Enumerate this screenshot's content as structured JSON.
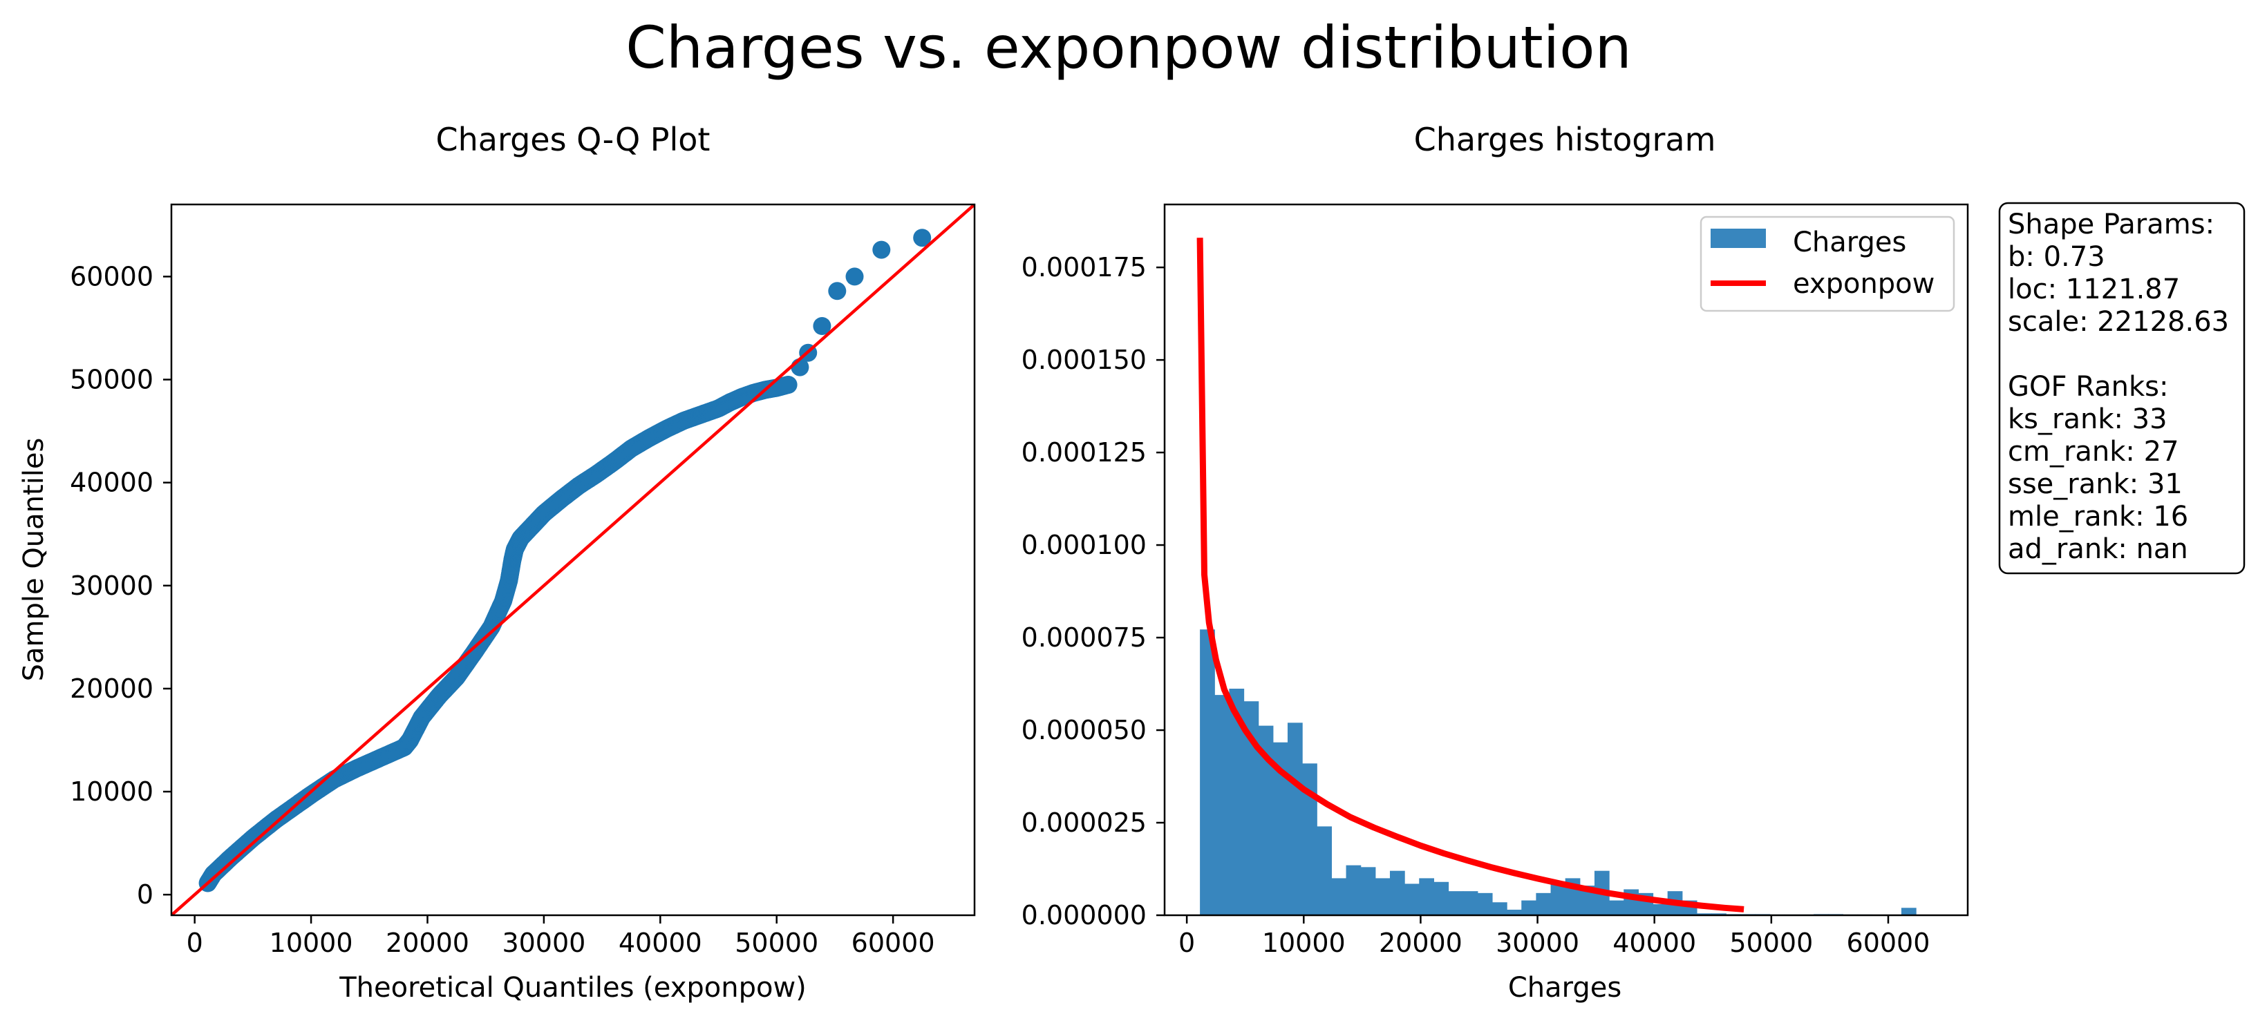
{
  "figure": {
    "suptitle": "Charges vs. exponpow distribution"
  },
  "colors": {
    "points": "#1f77b4",
    "bars": "#3886be",
    "fit_line": "#ff0000",
    "axes": "#000000"
  },
  "qq": {
    "title": "Charges Q-Q Plot",
    "xlabel": "Theoretical Quantiles (exponpow)",
    "ylabel": "Sample Quantiles"
  },
  "hist": {
    "title": "Charges histogram",
    "xlabel": "Charges",
    "legend": {
      "entries": [
        "Charges",
        "exponpow"
      ],
      "placement": "top-right"
    }
  },
  "info_box": {
    "lines": [
      "Shape Params:",
      "b: 0.73",
      "loc: 1121.87",
      "scale: 22128.63",
      "",
      "GOF Ranks:",
      "ks_rank: 33",
      "cm_rank: 27",
      "sse_rank: 31",
      "mle_rank: 16",
      "ad_rank: nan"
    ]
  },
  "chart_data": [
    {
      "type": "scatter",
      "title": "Charges Q-Q Plot",
      "xlabel": "Theoretical Quantiles (exponpow)",
      "ylabel": "Sample Quantiles",
      "xlim": [
        -2000,
        67000
      ],
      "ylim": [
        -2000,
        67000
      ],
      "xticks": [
        0,
        10000,
        20000,
        30000,
        40000,
        50000,
        60000
      ],
      "yticks": [
        0,
        10000,
        20000,
        30000,
        40000,
        50000,
        60000
      ],
      "reference_line": {
        "x": [
          -2000,
          67000
        ],
        "y": [
          -2000,
          67000
        ]
      },
      "quantile_curve": {
        "x": [
          1121,
          1600,
          3000,
          5000,
          7000,
          9000,
          10000,
          12000,
          14000,
          16000,
          18000,
          18500,
          19500,
          21000,
          22500,
          24000,
          25500,
          26500,
          27000,
          27300,
          27500,
          28000,
          29000,
          30000,
          31500,
          33000,
          34500,
          36000,
          37500,
          39000,
          40500,
          42000,
          43500,
          45000,
          46000,
          47000,
          48000,
          49000,
          50000,
          51000
        ],
        "y": [
          1121,
          2000,
          3500,
          5500,
          7300,
          8900,
          9700,
          11200,
          12300,
          13300,
          14300,
          15000,
          17200,
          19300,
          21100,
          23500,
          26000,
          28500,
          30500,
          32500,
          33500,
          34600,
          35800,
          37000,
          38400,
          39700,
          40800,
          42000,
          43300,
          44300,
          45200,
          46000,
          46600,
          47200,
          47800,
          48300,
          48700,
          49000,
          49200,
          49500
        ]
      },
      "outliers": {
        "x": [
          52000,
          52700,
          53900,
          55200,
          56700,
          59000,
          62500
        ],
        "y": [
          51200,
          52600,
          55200,
          58600,
          60000,
          62600,
          63770
        ]
      }
    },
    {
      "type": "bar",
      "title": "Charges histogram",
      "xlabel": "Charges",
      "xlim": [
        -1900,
        66800
      ],
      "ylim": [
        0,
        0.000192
      ],
      "xticks": [
        0,
        10000,
        20000,
        30000,
        40000,
        50000,
        60000
      ],
      "yticks": [
        0,
        2.5e-05,
        5e-05,
        7.5e-05,
        0.0001,
        0.000125,
        0.00015,
        0.000175
      ],
      "ytick_labels": [
        "0.000000",
        "0.000025",
        "0.000050",
        "0.000075",
        "0.000100",
        "0.000125",
        "0.000150",
        "0.000175"
      ],
      "bin_start": 1121.87,
      "bin_width": 1250,
      "values": [
        7.72e-05,
        5.95e-05,
        6.12e-05,
        5.78e-05,
        5.12e-05,
        4.67e-05,
        5.2e-05,
        4.1e-05,
        2.4e-05,
        1e-05,
        1.35e-05,
        1.3e-05,
        1e-05,
        1.2e-05,
        8.5e-06,
        1e-05,
        9e-06,
        6.5e-06,
        6.5e-06,
        6e-06,
        3.5e-06,
        1.5e-06,
        4e-06,
        6e-06,
        9e-06,
        1e-05,
        8e-06,
        1.2e-05,
        4e-06,
        7e-06,
        6e-06,
        3e-06,
        6.5e-06,
        4e-06,
        5e-07,
        5e-07,
        3e-07,
        3e-07,
        3e-07,
        2e-07,
        2e-07,
        2e-07,
        3e-07,
        3e-07,
        2e-07,
        2e-07,
        1e-07,
        1e-07,
        2e-06
      ],
      "series": [
        {
          "name": "Charges",
          "kind": "histogram"
        },
        {
          "name": "exponpow",
          "kind": "line",
          "x": [
            1121.87,
            1500,
            1900,
            2500,
            3200,
            4000,
            5000,
            6000,
            7000,
            8000,
            9000,
            10000,
            12000,
            14000,
            16000,
            18000,
            20000,
            22000,
            24000,
            26000,
            28000,
            30000,
            32000,
            34000,
            36000,
            38000,
            40000,
            42000,
            44000,
            46000,
            47650
          ],
          "y": [
            0.000183,
            9.2e-05,
            7.9e-05,
            6.9e-05,
            6.1e-05,
            5.55e-05,
            5e-05,
            4.55e-05,
            4.2e-05,
            3.9e-05,
            3.65e-05,
            3.4e-05,
            3e-05,
            2.65e-05,
            2.37e-05,
            2.12e-05,
            1.88e-05,
            1.67e-05,
            1.48e-05,
            1.3e-05,
            1.14e-05,
            9.9e-06,
            8.5e-06,
            7.2e-06,
            6e-06,
            5e-06,
            4.1e-06,
            3.3e-06,
            2.6e-06,
            2e-06,
            1.6e-06
          ]
        }
      ]
    }
  ]
}
